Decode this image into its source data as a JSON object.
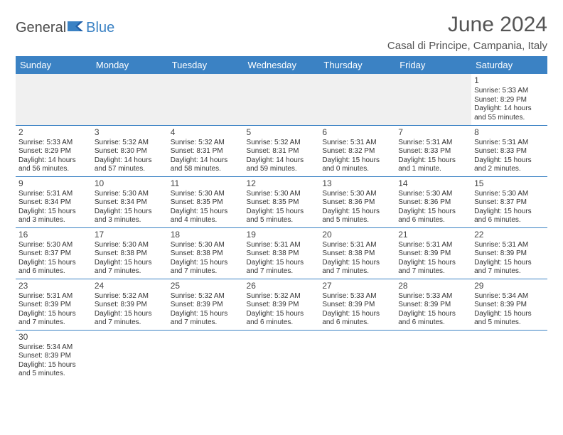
{
  "logo": {
    "text1": "General",
    "text2": "Blue"
  },
  "title": "June 2024",
  "location": "Casal di Principe, Campania, Italy",
  "colors": {
    "header_bg": "#3b82c4",
    "header_text": "#ffffff",
    "border": "#3b82c4",
    "empty_bg": "#f0f0f0",
    "text": "#333333",
    "title_text": "#555555",
    "logo_gray": "#4a4a4a",
    "logo_blue": "#3b82c4"
  },
  "day_headers": [
    "Sunday",
    "Monday",
    "Tuesday",
    "Wednesday",
    "Thursday",
    "Friday",
    "Saturday"
  ],
  "weeks": [
    [
      null,
      null,
      null,
      null,
      null,
      null,
      {
        "n": "1",
        "sr": "Sunrise: 5:33 AM",
        "ss": "Sunset: 8:29 PM",
        "dl": "Daylight: 14 hours and 55 minutes."
      }
    ],
    [
      {
        "n": "2",
        "sr": "Sunrise: 5:33 AM",
        "ss": "Sunset: 8:29 PM",
        "dl": "Daylight: 14 hours and 56 minutes."
      },
      {
        "n": "3",
        "sr": "Sunrise: 5:32 AM",
        "ss": "Sunset: 8:30 PM",
        "dl": "Daylight: 14 hours and 57 minutes."
      },
      {
        "n": "4",
        "sr": "Sunrise: 5:32 AM",
        "ss": "Sunset: 8:31 PM",
        "dl": "Daylight: 14 hours and 58 minutes."
      },
      {
        "n": "5",
        "sr": "Sunrise: 5:32 AM",
        "ss": "Sunset: 8:31 PM",
        "dl": "Daylight: 14 hours and 59 minutes."
      },
      {
        "n": "6",
        "sr": "Sunrise: 5:31 AM",
        "ss": "Sunset: 8:32 PM",
        "dl": "Daylight: 15 hours and 0 minutes."
      },
      {
        "n": "7",
        "sr": "Sunrise: 5:31 AM",
        "ss": "Sunset: 8:33 PM",
        "dl": "Daylight: 15 hours and 1 minute."
      },
      {
        "n": "8",
        "sr": "Sunrise: 5:31 AM",
        "ss": "Sunset: 8:33 PM",
        "dl": "Daylight: 15 hours and 2 minutes."
      }
    ],
    [
      {
        "n": "9",
        "sr": "Sunrise: 5:31 AM",
        "ss": "Sunset: 8:34 PM",
        "dl": "Daylight: 15 hours and 3 minutes."
      },
      {
        "n": "10",
        "sr": "Sunrise: 5:30 AM",
        "ss": "Sunset: 8:34 PM",
        "dl": "Daylight: 15 hours and 3 minutes."
      },
      {
        "n": "11",
        "sr": "Sunrise: 5:30 AM",
        "ss": "Sunset: 8:35 PM",
        "dl": "Daylight: 15 hours and 4 minutes."
      },
      {
        "n": "12",
        "sr": "Sunrise: 5:30 AM",
        "ss": "Sunset: 8:35 PM",
        "dl": "Daylight: 15 hours and 5 minutes."
      },
      {
        "n": "13",
        "sr": "Sunrise: 5:30 AM",
        "ss": "Sunset: 8:36 PM",
        "dl": "Daylight: 15 hours and 5 minutes."
      },
      {
        "n": "14",
        "sr": "Sunrise: 5:30 AM",
        "ss": "Sunset: 8:36 PM",
        "dl": "Daylight: 15 hours and 6 minutes."
      },
      {
        "n": "15",
        "sr": "Sunrise: 5:30 AM",
        "ss": "Sunset: 8:37 PM",
        "dl": "Daylight: 15 hours and 6 minutes."
      }
    ],
    [
      {
        "n": "16",
        "sr": "Sunrise: 5:30 AM",
        "ss": "Sunset: 8:37 PM",
        "dl": "Daylight: 15 hours and 6 minutes."
      },
      {
        "n": "17",
        "sr": "Sunrise: 5:30 AM",
        "ss": "Sunset: 8:38 PM",
        "dl": "Daylight: 15 hours and 7 minutes."
      },
      {
        "n": "18",
        "sr": "Sunrise: 5:30 AM",
        "ss": "Sunset: 8:38 PM",
        "dl": "Daylight: 15 hours and 7 minutes."
      },
      {
        "n": "19",
        "sr": "Sunrise: 5:31 AM",
        "ss": "Sunset: 8:38 PM",
        "dl": "Daylight: 15 hours and 7 minutes."
      },
      {
        "n": "20",
        "sr": "Sunrise: 5:31 AM",
        "ss": "Sunset: 8:38 PM",
        "dl": "Daylight: 15 hours and 7 minutes."
      },
      {
        "n": "21",
        "sr": "Sunrise: 5:31 AM",
        "ss": "Sunset: 8:39 PM",
        "dl": "Daylight: 15 hours and 7 minutes."
      },
      {
        "n": "22",
        "sr": "Sunrise: 5:31 AM",
        "ss": "Sunset: 8:39 PM",
        "dl": "Daylight: 15 hours and 7 minutes."
      }
    ],
    [
      {
        "n": "23",
        "sr": "Sunrise: 5:31 AM",
        "ss": "Sunset: 8:39 PM",
        "dl": "Daylight: 15 hours and 7 minutes."
      },
      {
        "n": "24",
        "sr": "Sunrise: 5:32 AM",
        "ss": "Sunset: 8:39 PM",
        "dl": "Daylight: 15 hours and 7 minutes."
      },
      {
        "n": "25",
        "sr": "Sunrise: 5:32 AM",
        "ss": "Sunset: 8:39 PM",
        "dl": "Daylight: 15 hours and 7 minutes."
      },
      {
        "n": "26",
        "sr": "Sunrise: 5:32 AM",
        "ss": "Sunset: 8:39 PM",
        "dl": "Daylight: 15 hours and 6 minutes."
      },
      {
        "n": "27",
        "sr": "Sunrise: 5:33 AM",
        "ss": "Sunset: 8:39 PM",
        "dl": "Daylight: 15 hours and 6 minutes."
      },
      {
        "n": "28",
        "sr": "Sunrise: 5:33 AM",
        "ss": "Sunset: 8:39 PM",
        "dl": "Daylight: 15 hours and 6 minutes."
      },
      {
        "n": "29",
        "sr": "Sunrise: 5:34 AM",
        "ss": "Sunset: 8:39 PM",
        "dl": "Daylight: 15 hours and 5 minutes."
      }
    ],
    [
      {
        "n": "30",
        "sr": "Sunrise: 5:34 AM",
        "ss": "Sunset: 8:39 PM",
        "dl": "Daylight: 15 hours and 5 minutes."
      },
      null,
      null,
      null,
      null,
      null,
      null
    ]
  ]
}
